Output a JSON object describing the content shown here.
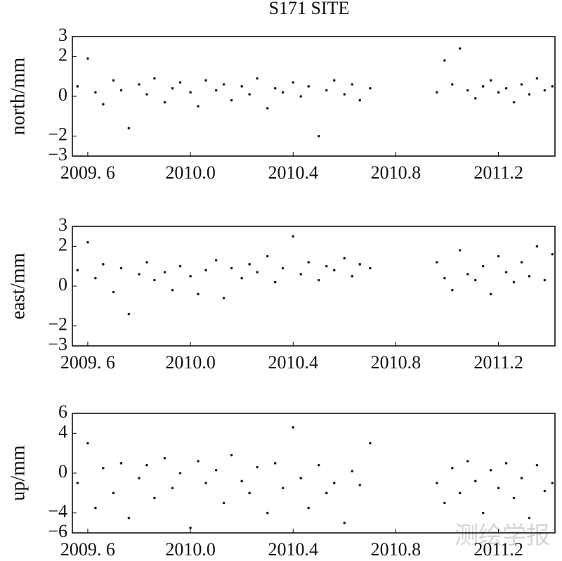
{
  "watermark": "测绘学报",
  "chart_data": [
    {
      "type": "scatter",
      "title": "S171 SITE",
      "ylabel": "north/mm",
      "color": "#222222",
      "xlim": [
        2009.54,
        2011.42
      ],
      "xticks": [
        {
          "value": 2009.6,
          "label": "2009. 6"
        },
        {
          "value": 2010.0,
          "label": "2010.0"
        },
        2010.4,
        2010.8,
        2011.2
      ],
      "ylim": [
        -3,
        3
      ],
      "yticks": [
        {
          "value": -3,
          "label": "−3"
        },
        {
          "value": -2,
          "label": "−2"
        },
        0,
        2,
        3
      ],
      "x": [
        2009.56,
        2009.6,
        2009.63,
        2009.66,
        2009.7,
        2009.73,
        2009.76,
        2009.8,
        2009.83,
        2009.86,
        2009.9,
        2009.93,
        2009.96,
        2010.0,
        2010.03,
        2010.06,
        2010.1,
        2010.13,
        2010.16,
        2010.2,
        2010.23,
        2010.26,
        2010.3,
        2010.33,
        2010.36,
        2010.4,
        2010.43,
        2010.46,
        2010.5,
        2010.53,
        2010.56,
        2010.6,
        2010.63,
        2010.66,
        2010.7,
        2010.96,
        2010.99,
        2011.02,
        2011.05,
        2011.08,
        2011.11,
        2011.14,
        2011.17,
        2011.2,
        2011.23,
        2011.26,
        2011.29,
        2011.32,
        2011.35,
        2011.38,
        2011.41
      ],
      "values": [
        0.5,
        1.9,
        0.2,
        -0.4,
        0.8,
        0.3,
        -1.6,
        0.6,
        0.1,
        0.9,
        -0.3,
        0.4,
        0.7,
        0.2,
        -0.5,
        0.8,
        0.3,
        0.6,
        -0.2,
        0.5,
        0.1,
        0.9,
        -0.6,
        0.4,
        0.2,
        0.7,
        0.0,
        0.5,
        -2.0,
        0.3,
        0.8,
        0.1,
        0.6,
        -0.2,
        0.4,
        0.2,
        1.8,
        0.6,
        2.4,
        0.3,
        -0.1,
        0.5,
        0.8,
        0.2,
        0.4,
        -0.3,
        0.6,
        0.1,
        0.9,
        0.3,
        0.5
      ]
    },
    {
      "type": "scatter",
      "ylabel": "east/mm",
      "color": "#222222",
      "xlim": [
        2009.54,
        2011.42
      ],
      "xticks": [
        {
          "value": 2009.6,
          "label": "2009. 6"
        },
        {
          "value": 2010.0,
          "label": "2010.0"
        },
        2010.4,
        2010.8,
        2011.2
      ],
      "ylim": [
        -3,
        3
      ],
      "yticks": [
        {
          "value": -3,
          "label": "−3"
        },
        {
          "value": -2,
          "label": "−2"
        },
        0,
        2,
        3
      ],
      "x": [
        2009.56,
        2009.6,
        2009.63,
        2009.66,
        2009.7,
        2009.73,
        2009.76,
        2009.8,
        2009.83,
        2009.86,
        2009.9,
        2009.93,
        2009.96,
        2010.0,
        2010.03,
        2010.06,
        2010.1,
        2010.13,
        2010.16,
        2010.2,
        2010.23,
        2010.26,
        2010.3,
        2010.33,
        2010.36,
        2010.4,
        2010.43,
        2010.46,
        2010.5,
        2010.53,
        2010.56,
        2010.6,
        2010.63,
        2010.66,
        2010.7,
        2010.96,
        2010.99,
        2011.02,
        2011.05,
        2011.08,
        2011.11,
        2011.14,
        2011.17,
        2011.2,
        2011.23,
        2011.26,
        2011.29,
        2011.32,
        2011.35,
        2011.38,
        2011.41
      ],
      "values": [
        0.8,
        2.2,
        0.4,
        1.1,
        -0.3,
        0.9,
        -1.4,
        0.6,
        1.2,
        0.3,
        0.7,
        -0.2,
        1.0,
        0.5,
        -0.4,
        0.8,
        1.3,
        -0.6,
        0.9,
        0.4,
        1.1,
        0.7,
        1.5,
        0.2,
        0.9,
        2.5,
        0.6,
        1.2,
        0.3,
        1.0,
        0.8,
        1.4,
        0.5,
        1.1,
        0.9,
        1.2,
        0.4,
        -0.2,
        1.8,
        0.6,
        0.3,
        1.0,
        -0.4,
        1.5,
        0.7,
        0.2,
        1.2,
        0.5,
        2.0,
        0.3,
        1.6
      ]
    },
    {
      "type": "scatter",
      "ylabel": "up/mm",
      "color": "#222222",
      "xlim": [
        2009.54,
        2011.42
      ],
      "xticks": [
        {
          "value": 2009.6,
          "label": "2009. 6"
        },
        {
          "value": 2010.0,
          "label": "2010.0"
        },
        2010.4,
        2010.8,
        2011.2
      ],
      "ylim": [
        -6,
        6
      ],
      "yticks": [
        {
          "value": -6,
          "label": "−6"
        },
        {
          "value": -4,
          "label": "−4"
        },
        0,
        4,
        6
      ],
      "x": [
        2009.56,
        2009.6,
        2009.63,
        2009.66,
        2009.7,
        2009.73,
        2009.76,
        2009.8,
        2009.83,
        2009.86,
        2009.9,
        2009.93,
        2009.96,
        2010.0,
        2010.03,
        2010.06,
        2010.1,
        2010.13,
        2010.16,
        2010.2,
        2010.23,
        2010.26,
        2010.3,
        2010.33,
        2010.36,
        2010.4,
        2010.43,
        2010.46,
        2010.5,
        2010.53,
        2010.56,
        2010.6,
        2010.63,
        2010.66,
        2010.7,
        2010.96,
        2010.99,
        2011.02,
        2011.05,
        2011.08,
        2011.11,
        2011.14,
        2011.17,
        2011.2,
        2011.23,
        2011.26,
        2011.29,
        2011.32,
        2011.35,
        2011.38,
        2011.41
      ],
      "values": [
        -1,
        3,
        -3.5,
        0.5,
        -2,
        1,
        -4.5,
        -0.5,
        0.8,
        -2.5,
        1.5,
        -1.5,
        0,
        -5.5,
        1.2,
        -1,
        0.3,
        -3,
        1.8,
        -0.8,
        -2,
        0.6,
        -4,
        1,
        -1.5,
        4.6,
        -0.5,
        -3.5,
        0.8,
        -2,
        -1,
        -5,
        0.2,
        -1.2,
        3,
        -1,
        -3,
        0.5,
        -2,
        1.2,
        -0.8,
        -4,
        0.3,
        -1.5,
        1,
        -2.5,
        -0.5,
        -4.5,
        0.8,
        -1.8,
        -1
      ]
    }
  ]
}
